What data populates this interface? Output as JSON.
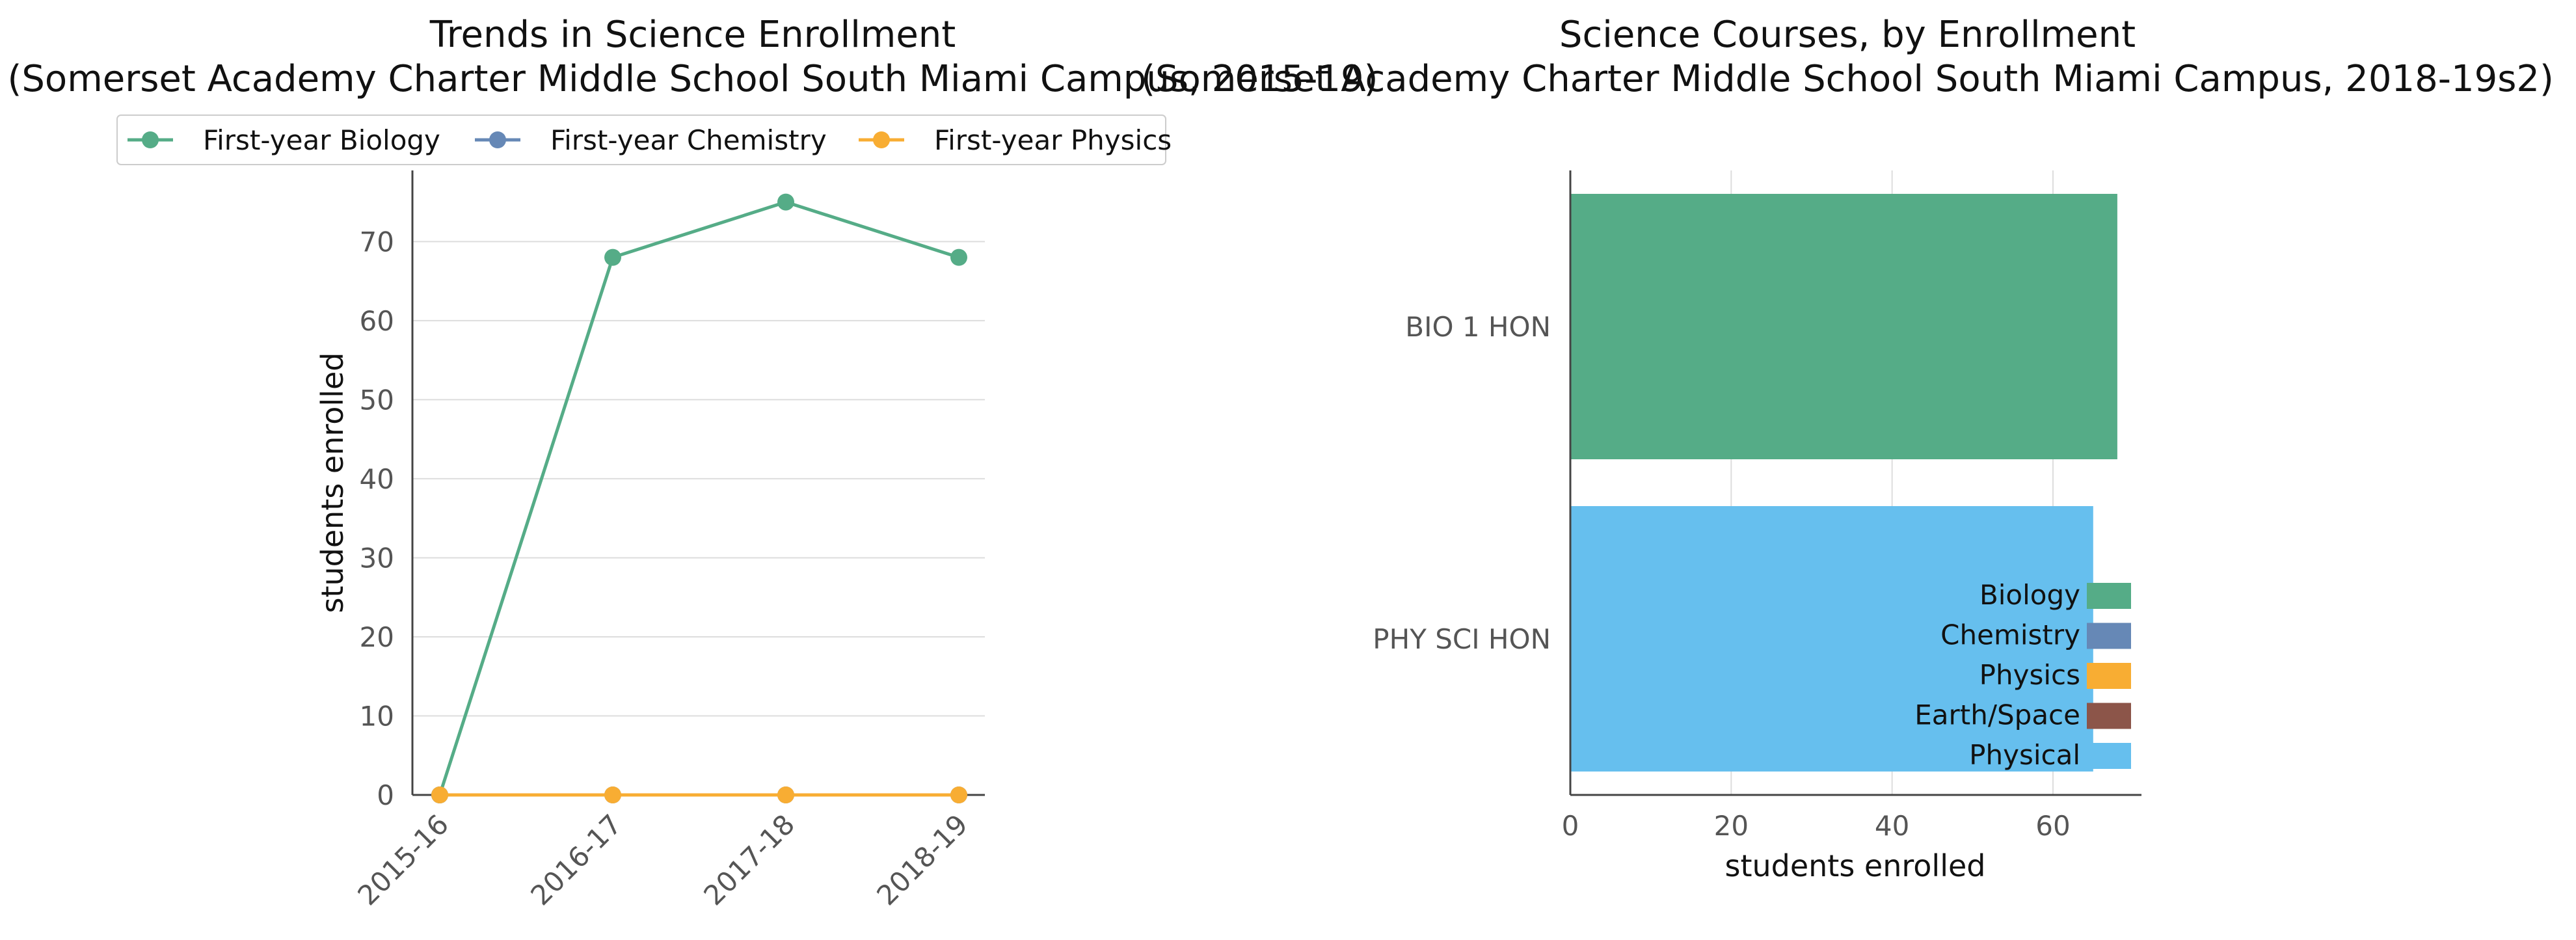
{
  "colors": {
    "biology": "#55ac87",
    "chemistry": "#6688b6",
    "physics": "#f8ad33",
    "earth_space": "#8c5549",
    "physical": "#66bfee",
    "axis": "#444444",
    "grid": "#dddddd",
    "tick_text": "#555555"
  },
  "chart_data": [
    {
      "type": "line",
      "title": "Trends in Science Enrollment",
      "subtitle": "(Somerset Academy Charter Middle School South Miami Campus, 2015-19)",
      "xlabel": "",
      "ylabel": "students enrolled",
      "categories": [
        "2015-16",
        "2016-17",
        "2017-18",
        "2018-19"
      ],
      "ylim": [
        0,
        79
      ],
      "yticks": [
        0,
        10,
        20,
        30,
        40,
        50,
        60,
        70
      ],
      "grid": "horizontal",
      "legend_position": "top",
      "series": [
        {
          "name": "First-year Biology",
          "color_key": "biology",
          "values": [
            0,
            68,
            75,
            68
          ]
        },
        {
          "name": "First-year Chemistry",
          "color_key": "chemistry",
          "values": [
            0,
            0,
            0,
            0
          ]
        },
        {
          "name": "First-year Physics",
          "color_key": "physics",
          "values": [
            0,
            0,
            0,
            0
          ]
        }
      ]
    },
    {
      "type": "bar",
      "orientation": "horizontal",
      "title": "Science Courses, by Enrollment",
      "subtitle": "(Somerset Academy Charter Middle School South Miami Campus, 2018-19s2)",
      "xlabel": "students enrolled",
      "ylabel": "",
      "categories": [
        "BIO 1 HON",
        "PHY SCI HON"
      ],
      "values": [
        68,
        65
      ],
      "bar_color_keys": [
        "biology",
        "physical"
      ],
      "xlim": [
        0,
        71
      ],
      "xticks": [
        0,
        20,
        40,
        60
      ],
      "grid": "vertical",
      "legend_position": "lower-right",
      "legend": [
        {
          "label": "Biology",
          "color_key": "biology"
        },
        {
          "label": "Chemistry",
          "color_key": "chemistry"
        },
        {
          "label": "Physics",
          "color_key": "physics"
        },
        {
          "label": "Earth/Space",
          "color_key": "earth_space"
        },
        {
          "label": "Physical",
          "color_key": "physical"
        }
      ]
    }
  ]
}
